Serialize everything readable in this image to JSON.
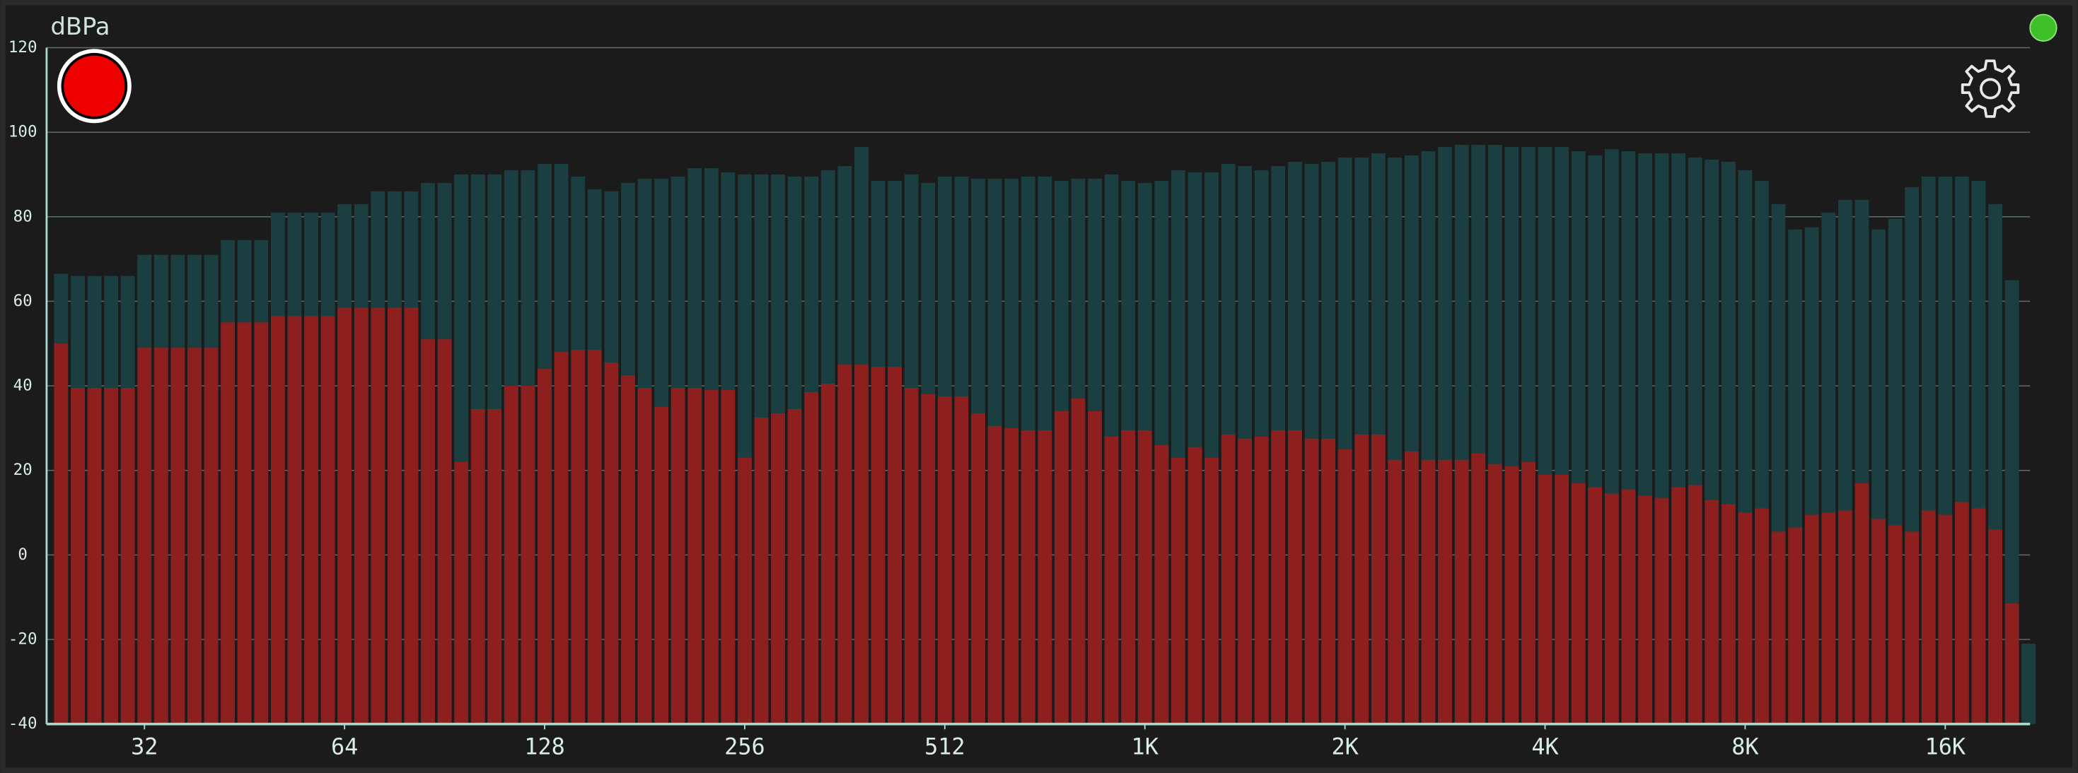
{
  "chart_data": {
    "type": "bar",
    "y_label": "dBPa",
    "xlog": true,
    "grid": true,
    "x": [
      23.97,
      25.4,
      26.91,
      28.51,
      30.2,
      32,
      33.9,
      35.92,
      38.05,
      40.32,
      42.71,
      45.25,
      47.95,
      50.8,
      53.82,
      57.02,
      60.41,
      64,
      67.81,
      71.84,
      76.11,
      80.63,
      85.43,
      90.51,
      95.89,
      101.6,
      107.6,
      114,
      120.8,
      128,
      135.6,
      143.7,
      152.2,
      161.3,
      170.9,
      181,
      191.8,
      203.2,
      215.3,
      228.1,
      241.6,
      256,
      271.2,
      287.3,
      304.4,
      322.5,
      341.7,
      362,
      383.6,
      406.4,
      430.5,
      456.1,
      483.3,
      512,
      542.4,
      574.7,
      608.9,
      645.1,
      683.4,
      724.1,
      767.1,
      812.7,
      861.1,
      912.3,
      966.5,
      1024,
      1085,
      1149,
      1218,
      1290,
      1367,
      1448,
      1534,
      1625,
      1722,
      1825,
      1933,
      2048,
      2170,
      2299,
      2435,
      2580,
      2734,
      2896,
      3069,
      3251,
      3444,
      3649,
      3866,
      4096,
      4340,
      4598,
      4871,
      5161,
      5468,
      5793,
      6137,
      6502,
      6889,
      7298,
      7732,
      8192,
      8679,
      9195,
      9742,
      10321,
      10935,
      11585,
      12274,
      13004,
      13777,
      14596,
      15464,
      16384,
      17358,
      18390,
      19484,
      20643,
      21870
    ],
    "series": [
      {
        "color": "#1b3f40",
        "values": [
          66.5,
          66,
          66,
          66,
          66,
          71,
          71,
          71,
          71,
          71,
          74.5,
          74.5,
          74.5,
          81,
          81,
          81,
          81,
          83,
          83,
          86,
          86,
          86,
          88,
          88,
          90,
          90,
          90,
          91,
          91,
          92.5,
          92.5,
          89.5,
          86.5,
          86,
          88,
          89,
          89,
          89.5,
          91.5,
          91.5,
          90.5,
          90,
          90,
          90,
          89.5,
          89.5,
          91,
          92,
          96.5,
          88.5,
          88.5,
          90,
          88,
          89.5,
          89.5,
          89,
          89,
          89,
          89.5,
          89.5,
          88.5,
          89,
          89,
          90,
          88.5,
          88,
          88.5,
          91,
          90.5,
          90.5,
          92.5,
          92,
          91,
          92,
          93,
          92.5,
          93,
          94,
          94,
          95,
          94,
          94.5,
          95.5,
          96.5,
          97,
          97,
          97,
          96.5,
          96.5,
          96.5,
          96.5,
          95.5,
          94.5,
          96,
          95.5,
          95,
          95,
          95,
          94,
          93.5,
          93,
          91,
          88.5,
          83,
          77,
          77.5,
          81,
          84,
          84,
          77,
          79.5,
          87,
          89.5,
          89.5,
          89.5,
          88.5,
          83,
          65,
          -21
        ]
      },
      {
        "color": "#8e1f1f",
        "values": [
          50,
          39.5,
          39.5,
          39.5,
          39.5,
          49,
          49,
          49,
          49,
          49,
          55,
          55,
          55,
          56.5,
          56.5,
          56.5,
          56.5,
          58.5,
          58.5,
          58.5,
          58.5,
          58.5,
          51,
          51,
          22,
          34.5,
          34.5,
          40,
          40,
          44,
          48,
          48.5,
          48.5,
          45.5,
          42.5,
          39.5,
          35,
          39.5,
          39.5,
          39,
          39,
          23,
          32.5,
          33.5,
          34.5,
          38.5,
          40.5,
          45,
          45,
          44.5,
          44.5,
          39.5,
          38,
          37.5,
          37.5,
          33.5,
          30.5,
          30,
          29.5,
          29.5,
          34,
          37,
          34,
          28,
          29.5,
          29.5,
          26,
          23,
          25.5,
          23,
          28.5,
          27.5,
          28,
          29.5,
          29.5,
          27.5,
          27.5,
          25,
          28.5,
          28.5,
          22.5,
          24.5,
          22.5,
          22.5,
          22.5,
          24,
          21.5,
          21,
          22,
          19,
          19,
          17,
          16,
          14.5,
          15.5,
          14,
          13.5,
          16,
          16.5,
          13,
          12,
          10,
          11,
          5.5,
          6.5,
          9.5,
          10,
          10.5,
          17,
          8.5,
          7,
          5.5,
          10.5,
          9.5,
          12.5,
          11,
          6,
          -11.5,
          null
        ]
      }
    ],
    "xlim": [
      22.8,
      21980
    ],
    "xticks": [
      32,
      64,
      128,
      256,
      512,
      {
        "value": 1024,
        "label": "1K"
      },
      {
        "value": 2048,
        "label": "2K"
      },
      {
        "value": 4096,
        "label": "4K"
      },
      {
        "value": 8192,
        "label": "8K"
      },
      {
        "value": 16384,
        "label": "16K"
      }
    ],
    "ylim": [
      -40,
      120
    ],
    "yticks": [
      -40,
      -20,
      0,
      20,
      40,
      60,
      80,
      100,
      120
    ]
  }
}
